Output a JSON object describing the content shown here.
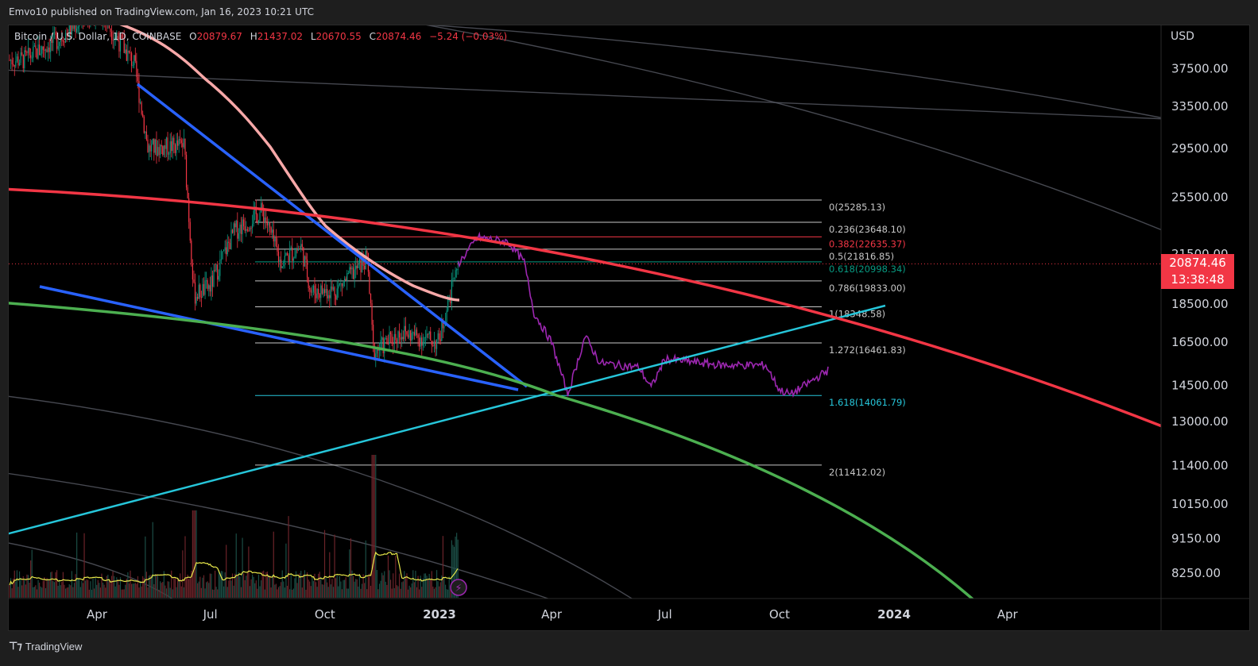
{
  "header": {
    "published": "Emvo10 published on TradingView.com, Jan 16, 2023 10:21 UTC"
  },
  "legend": {
    "symbol": "Bitcoin / U.S. Dollar, 1D, COINBASE",
    "open_label": "O",
    "open": "20879.67",
    "high_label": "H",
    "high": "21437.02",
    "low_label": "L",
    "low": "20670.55",
    "close_label": "C",
    "close": "20874.46",
    "change": "−5.24 (−0.03%)"
  },
  "axis": {
    "currency": "USD",
    "current_price": "20874.46",
    "countdown": "13:38:48"
  },
  "footer": {
    "brand": "TradingView"
  },
  "colors": {
    "background": "#000000",
    "down": "#f23645",
    "up": "#089981",
    "fib_cyan": "#26c6da",
    "purple_projection": "#9c27b0",
    "trend_blue": "#2962ff",
    "ma_pink": "#f7a8a8",
    "arc_red": "#f23645",
    "arc_green": "#4caf50",
    "volume_ma": "#e8e84a"
  },
  "chart_data": {
    "type": "candlestick",
    "log_scale": true,
    "grid": false,
    "y_ticks": [
      "37500.00",
      "33500.00",
      "29500.00",
      "25500.00",
      "21500.00",
      "18500.00",
      "16500.00",
      "14500.00",
      "13000.00",
      "11400.00",
      "10150.00",
      "9150.00",
      "8250.00"
    ],
    "x_ticks": [
      {
        "label": "Apr",
        "bold": false
      },
      {
        "label": "Jul",
        "bold": false
      },
      {
        "label": "Oct",
        "bold": false
      },
      {
        "label": "2023",
        "bold": true
      },
      {
        "label": "Apr",
        "bold": false
      },
      {
        "label": "Jul",
        "bold": false
      },
      {
        "label": "Oct",
        "bold": false
      },
      {
        "label": "2024",
        "bold": true
      },
      {
        "label": "Apr",
        "bold": false
      }
    ],
    "fib_levels": [
      {
        "label": "0(25285.13)",
        "value": 25285.13,
        "color": "#c7c7c7"
      },
      {
        "label": "0.236(23648.10)",
        "value": 23648.1,
        "color": "#c7c7c7"
      },
      {
        "label": "0.382(22635.37)",
        "value": 22635.37,
        "color": "#f23645"
      },
      {
        "label": "0.5(21816.85)",
        "value": 21816.85,
        "color": "#c7c7c7"
      },
      {
        "label": "0.618(20998.34)",
        "value": 20998.34,
        "color": "#089981"
      },
      {
        "label": "0.786(19833.00)",
        "value": 19833.0,
        "color": "#c7c7c7"
      },
      {
        "label": "1(18348.58)",
        "value": 18348.58,
        "color": "#c7c7c7"
      },
      {
        "label": "1.272(16461.83)",
        "value": 16461.83,
        "color": "#c7c7c7"
      },
      {
        "label": "1.618(14061.79)",
        "value": 14061.79,
        "color": "#26c6da"
      },
      {
        "label": "2(11412.02)",
        "value": 11412.02,
        "color": "#c7c7c7"
      }
    ],
    "last_close": 20874.46,
    "price_path": [
      {
        "date": "2022-02-01",
        "value": 38500
      },
      {
        "date": "2022-03-01",
        "value": 41000
      },
      {
        "date": "2022-04-01",
        "value": 45000
      },
      {
        "date": "2022-05-01",
        "value": 38000
      },
      {
        "date": "2022-05-12",
        "value": 29500
      },
      {
        "date": "2022-06-10",
        "value": 29800
      },
      {
        "date": "2022-06-18",
        "value": 19000
      },
      {
        "date": "2022-07-01",
        "value": 19500
      },
      {
        "date": "2022-07-20",
        "value": 23000
      },
      {
        "date": "2022-08-12",
        "value": 24500
      },
      {
        "date": "2022-08-26",
        "value": 21000
      },
      {
        "date": "2022-09-12",
        "value": 22000
      },
      {
        "date": "2022-09-20",
        "value": 19200
      },
      {
        "date": "2022-10-10",
        "value": 19300
      },
      {
        "date": "2022-11-04",
        "value": 21200
      },
      {
        "date": "2022-11-09",
        "value": 16000
      },
      {
        "date": "2022-12-01",
        "value": 17000
      },
      {
        "date": "2022-12-31",
        "value": 16500
      },
      {
        "date": "2023-01-16",
        "value": 20874
      }
    ],
    "projection_path": [
      {
        "date": "2023-01-16",
        "value": 20874
      },
      {
        "date": "2023-02-01",
        "value": 22600
      },
      {
        "date": "2023-02-25",
        "value": 22300
      },
      {
        "date": "2023-03-10",
        "value": 21000
      },
      {
        "date": "2023-03-18",
        "value": 18000
      },
      {
        "date": "2023-04-01",
        "value": 16500
      },
      {
        "date": "2023-04-14",
        "value": 14100
      },
      {
        "date": "2023-04-28",
        "value": 16800
      },
      {
        "date": "2023-05-10",
        "value": 15500
      },
      {
        "date": "2023-06-10",
        "value": 15300
      },
      {
        "date": "2023-06-20",
        "value": 14400
      },
      {
        "date": "2023-07-01",
        "value": 15700
      },
      {
        "date": "2023-08-15",
        "value": 15400
      },
      {
        "date": "2023-09-20",
        "value": 15400
      },
      {
        "date": "2023-10-01",
        "value": 14300
      },
      {
        "date": "2023-10-10",
        "value": 14100
      },
      {
        "date": "2023-11-10",
        "value": 15200
      }
    ]
  }
}
